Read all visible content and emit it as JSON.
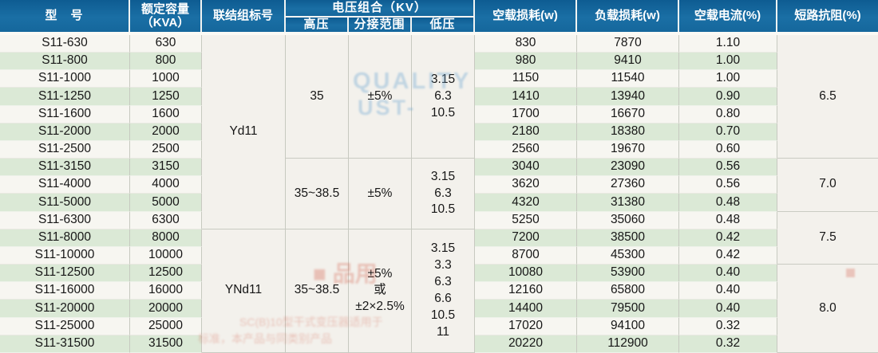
{
  "table": {
    "headers": {
      "model": "型　号",
      "capacity_line1": "额定容量",
      "capacity_line2": "（KVA）",
      "vector_group": "联结组标号",
      "voltage_group": "电压组合（KV）",
      "hv": "高压",
      "tap_range": "分接范围",
      "lv": "低压",
      "no_load_loss": "空载损耗(w)",
      "load_loss": "负载损耗(w)",
      "no_load_current": "空载电流(%)",
      "impedance": "短路抗阻(%)"
    },
    "rows": [
      {
        "model": "S11-630",
        "kva": "630",
        "no_load_loss": "830",
        "load_loss": "7870",
        "no_load_current": "1.10"
      },
      {
        "model": "S11-800",
        "kva": "800",
        "no_load_loss": "980",
        "load_loss": "9410",
        "no_load_current": "1.00"
      },
      {
        "model": "S11-1000",
        "kva": "1000",
        "no_load_loss": "1150",
        "load_loss": "11540",
        "no_load_current": "1.00"
      },
      {
        "model": "S11-1250",
        "kva": "1250",
        "no_load_loss": "1410",
        "load_loss": "13940",
        "no_load_current": "0.90"
      },
      {
        "model": "S11-1600",
        "kva": "1600",
        "no_load_loss": "1700",
        "load_loss": "16670",
        "no_load_current": "0.80"
      },
      {
        "model": "S11-2000",
        "kva": "2000",
        "no_load_loss": "2180",
        "load_loss": "18380",
        "no_load_current": "0.70"
      },
      {
        "model": "S11-2500",
        "kva": "2500",
        "no_load_loss": "2560",
        "load_loss": "19670",
        "no_load_current": "0.60"
      },
      {
        "model": "S11-3150",
        "kva": "3150",
        "no_load_loss": "3040",
        "load_loss": "23090",
        "no_load_current": "0.56"
      },
      {
        "model": "S11-4000",
        "kva": "4000",
        "no_load_loss": "3620",
        "load_loss": "27360",
        "no_load_current": "0.56"
      },
      {
        "model": "S11-5000",
        "kva": "5000",
        "no_load_loss": "4320",
        "load_loss": "31380",
        "no_load_current": "0.48"
      },
      {
        "model": "S11-6300",
        "kva": "6300",
        "no_load_loss": "5250",
        "load_loss": "35060",
        "no_load_current": "0.48"
      },
      {
        "model": "S11-8000",
        "kva": "8000",
        "no_load_loss": "7200",
        "load_loss": "38500",
        "no_load_current": "0.42"
      },
      {
        "model": "S11-10000",
        "kva": "10000",
        "no_load_loss": "8700",
        "load_loss": "45300",
        "no_load_current": "0.42"
      },
      {
        "model": "S11-12500",
        "kva": "12500",
        "no_load_loss": "10080",
        "load_loss": "53900",
        "no_load_current": "0.40"
      },
      {
        "model": "S11-16000",
        "kva": "16000",
        "no_load_loss": "12160",
        "load_loss": "65800",
        "no_load_current": "0.40"
      },
      {
        "model": "S11-20000",
        "kva": "20000",
        "no_load_loss": "14400",
        "load_loss": "79500",
        "no_load_current": "0.40"
      },
      {
        "model": "S11-25000",
        "kva": "25000",
        "no_load_loss": "17020",
        "load_loss": "94100",
        "no_load_current": "0.32"
      },
      {
        "model": "S11-31500",
        "kva": "31500",
        "no_load_loss": "20220",
        "load_loss": "112900",
        "no_load_current": "0.32"
      }
    ],
    "vector_groups": [
      {
        "label": "Yd11",
        "span": [
          0,
          11
        ]
      },
      {
        "label": "YNd11",
        "span": [
          11,
          18
        ]
      }
    ],
    "voltage_groups": [
      {
        "hv": "35",
        "tap_lines": [
          "±5%"
        ],
        "lv_lines": [
          "3.15",
          "6.3",
          "10.5"
        ],
        "span": [
          0,
          7
        ]
      },
      {
        "hv": "35~38.5",
        "tap_lines": [
          "±5%"
        ],
        "lv_lines": [
          "3.15",
          "6.3",
          "10.5"
        ],
        "span": [
          7,
          11
        ]
      },
      {
        "hv": "35~38.5",
        "tap_lines": [
          "±5%",
          "或",
          "±2×2.5%"
        ],
        "lv_lines": [
          "3.15",
          "3.3",
          "6.3",
          "6.6",
          "10.5",
          "11"
        ],
        "span": [
          11,
          18
        ]
      }
    ],
    "impedance_groups": [
      {
        "value": "6.5",
        "span": [
          0,
          7
        ]
      },
      {
        "value": "7.0",
        "span": [
          7,
          10
        ]
      },
      {
        "value": "7.5",
        "span": [
          10,
          13
        ]
      },
      {
        "value": "8.0",
        "span": [
          13,
          18
        ]
      }
    ]
  },
  "colors": {
    "header_blue": "#15679c",
    "stripe_green": "#dbe9d6",
    "stripe_white": "#f7f6f1",
    "merged_bg": "#f3f1ec"
  },
  "watermarks": {
    "blue_line1": "QUALITY",
    "blue_line2": "UST-",
    "red_stamp": "■ 品用",
    "red_text_line1": "SC(B)10型干式变压器适用于",
    "red_text_line2": "标准，本产品与同类别产品"
  }
}
